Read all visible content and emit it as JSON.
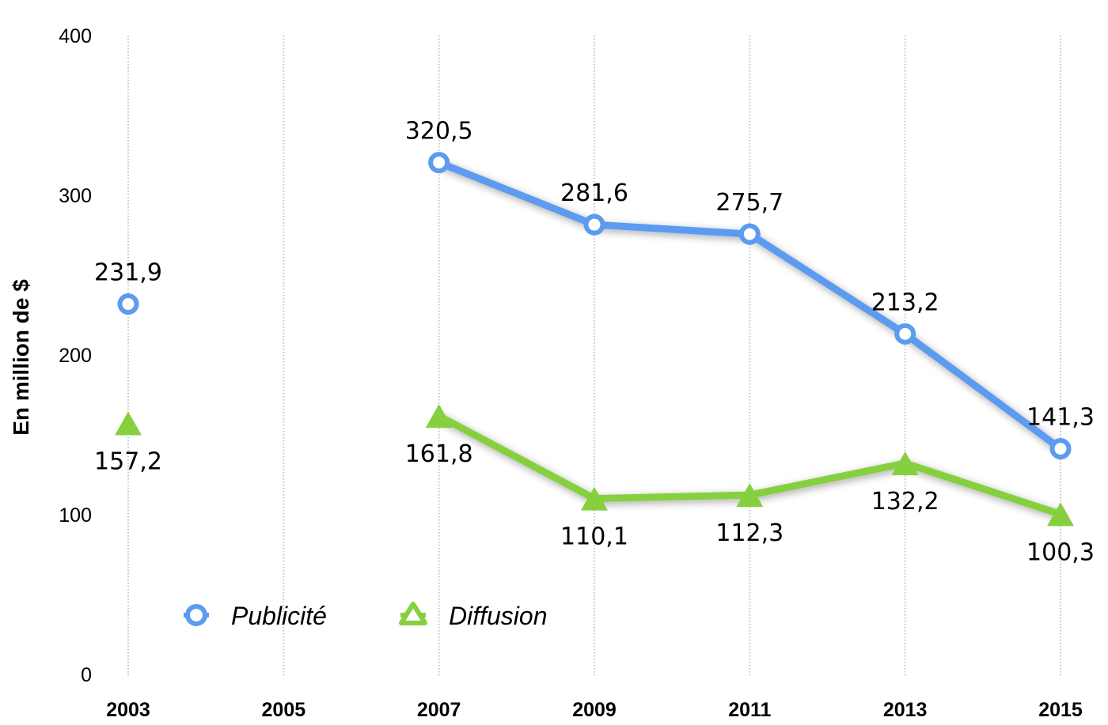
{
  "chart_data": {
    "type": "line",
    "ylabel": "En million de $",
    "xlabel": "",
    "ylim": [
      0,
      400
    ],
    "yticks": [
      "0",
      "100",
      "200",
      "300",
      "400"
    ],
    "categories": [
      "2003",
      "2005",
      "2007",
      "2009",
      "2011",
      "2013",
      "2015"
    ],
    "grid": "vertical dotted",
    "legend_position": "bottom-left",
    "series": [
      {
        "name": "Publicité",
        "color": "#5B9BF0",
        "marker": "circle",
        "values": [
          231.9,
          null,
          320.5,
          281.6,
          275.7,
          213.2,
          141.3
        ],
        "labels": [
          "231,9",
          "",
          "320,5",
          "281,6",
          "275,7",
          "213,2",
          "141,3"
        ]
      },
      {
        "name": "Diffusion",
        "color": "#86D03F",
        "marker": "triangle",
        "values": [
          157.2,
          null,
          161.8,
          110.1,
          112.3,
          132.2,
          100.3
        ],
        "labels": [
          "157,2",
          "",
          "161,8",
          "110,1",
          "112,3",
          "132,2",
          "100,3"
        ]
      }
    ]
  }
}
